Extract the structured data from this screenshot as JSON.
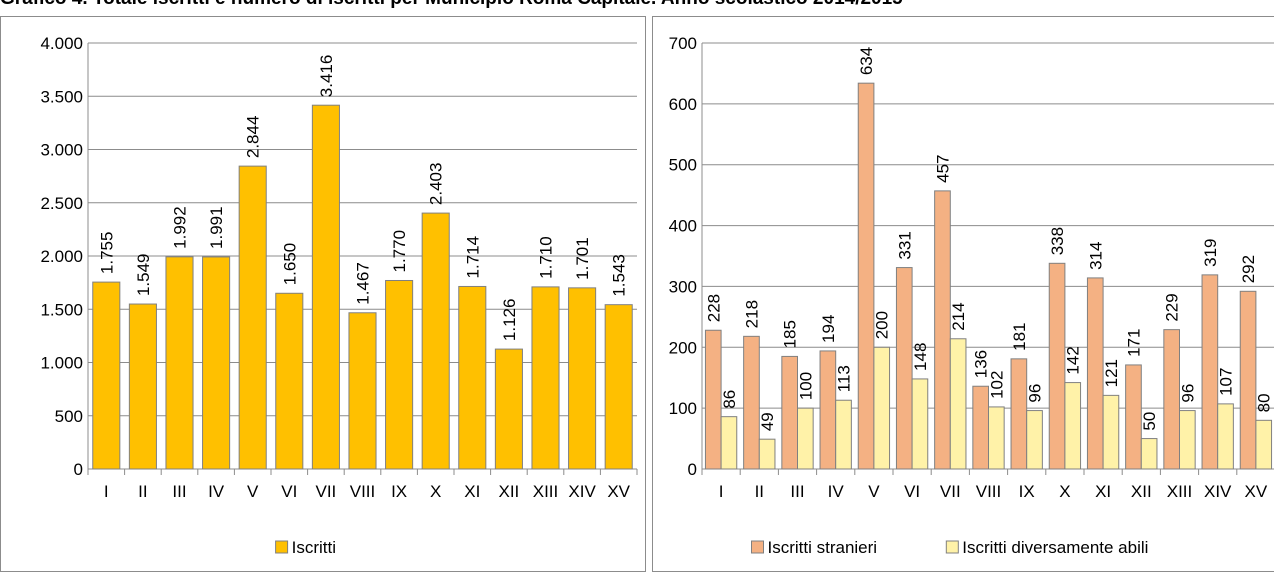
{
  "header": {
    "title": "Grafico 4. Totale iscritti e numero di iscritti per Municipio Roma Capitale. Anno scolastico 2014/2015"
  },
  "colors": {
    "iscritti": "#FFC000",
    "stranieri": "#F4B183",
    "disabili": "#FFF2A8",
    "axis": "#8c8c8c",
    "bar_border": "#808080"
  },
  "chart_data": [
    {
      "type": "bar",
      "categories": [
        "I",
        "II",
        "III",
        "IV",
        "V",
        "VI",
        "VII",
        "VIII",
        "IX",
        "X",
        "XI",
        "XII",
        "XIII",
        "XIV",
        "XV"
      ],
      "series": [
        {
          "name": "Iscritti",
          "values": [
            1755,
            1549,
            1992,
            1991,
            2844,
            1650,
            3416,
            1467,
            1770,
            2403,
            1714,
            1126,
            1710,
            1701,
            1543
          ]
        }
      ],
      "data_labels": [
        "1.755",
        "1.549",
        "1.992",
        "1.991",
        "2.844",
        "1.650",
        "3.416",
        "1.467",
        "1.770",
        "2.403",
        "1.714",
        "1.126",
        "1.710",
        "1.701",
        "1.543"
      ],
      "ylim": [
        0,
        4000
      ],
      "yticks": [
        0,
        500,
        1000,
        1500,
        2000,
        2500,
        3000,
        3500,
        4000
      ],
      "ytick_labels": [
        "0",
        "500",
        "1.000",
        "1.500",
        "2.000",
        "2.500",
        "3.000",
        "3.500",
        "4.000"
      ],
      "grid": true,
      "legend": "bottom"
    },
    {
      "type": "bar",
      "categories": [
        "I",
        "II",
        "III",
        "IV",
        "V",
        "VI",
        "VII",
        "VIII",
        "IX",
        "X",
        "XI",
        "XII",
        "XIII",
        "XIV",
        "XV"
      ],
      "series": [
        {
          "name": "Iscritti stranieri",
          "values": [
            228,
            218,
            185,
            194,
            634,
            331,
            457,
            136,
            181,
            338,
            314,
            171,
            229,
            319,
            292
          ]
        },
        {
          "name": "Iscritti diversamente abili",
          "values": [
            86,
            49,
            100,
            113,
            200,
            148,
            214,
            102,
            96,
            142,
            121,
            50,
            96,
            107,
            80
          ]
        }
      ],
      "ylim": [
        0,
        700
      ],
      "yticks": [
        0,
        100,
        200,
        300,
        400,
        500,
        600,
        700
      ],
      "ytick_labels": [
        "0",
        "100",
        "200",
        "300",
        "400",
        "500",
        "600",
        "700"
      ],
      "grid": true,
      "legend": "bottom"
    }
  ]
}
